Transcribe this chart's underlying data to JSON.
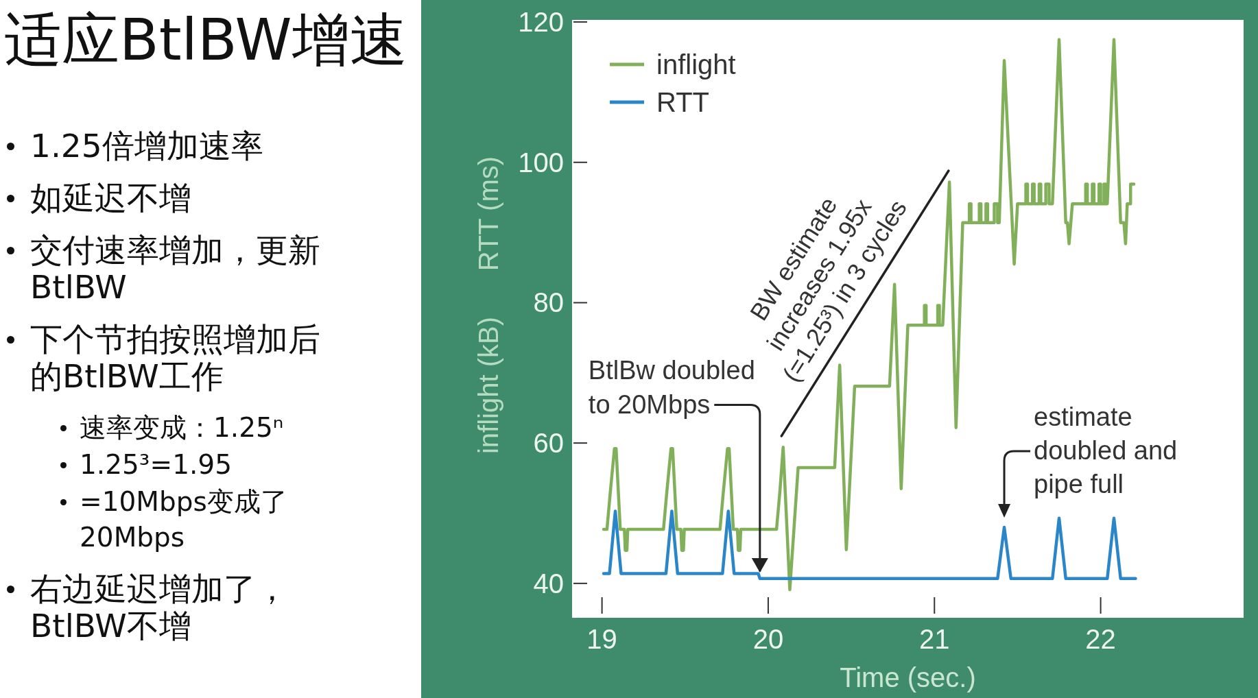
{
  "chart_data": {
    "type": "line",
    "title": "适应BtlBW增速",
    "xlabel": "Time (sec.)",
    "ylabel": "inflight (kB)      RTT (ms)",
    "xlim": [
      18.82,
      22.86
    ],
    "ylim": [
      35.1,
      120.3
    ],
    "xticks": [
      19,
      20,
      21,
      22
    ],
    "yticks": [
      40,
      60,
      80,
      100,
      120
    ],
    "legend": "top left",
    "series": [
      {
        "name": "inflight",
        "color": "#82b05a",
        "x": [
          19.01,
          19.03,
          19.05,
          19.075,
          19.085,
          19.11,
          19.135,
          19.14,
          19.15,
          19.155,
          19.37,
          19.39,
          19.415,
          19.425,
          19.45,
          19.475,
          19.48,
          19.49,
          19.495,
          19.71,
          19.73,
          19.755,
          19.765,
          19.79,
          19.815,
          19.82,
          19.83,
          19.835,
          20.05,
          20.07,
          20.09,
          20.13,
          20.18,
          20.4,
          20.43,
          20.47,
          20.52,
          20.73,
          20.76,
          20.8,
          20.84,
          20.94,
          20.94,
          20.95,
          20.95,
          21.02,
          21.02,
          21.03,
          21.03,
          21.05,
          21.09,
          21.13,
          21.17,
          21.21,
          21.21,
          21.22,
          21.22,
          21.27,
          21.27,
          21.28,
          21.28,
          21.31,
          21.31,
          21.32,
          21.32,
          21.36,
          21.36,
          21.38,
          21.38,
          21.39,
          21.42,
          21.48,
          21.5,
          21.55,
          21.55,
          21.56,
          21.56,
          21.59,
          21.59,
          21.6,
          21.6,
          21.63,
          21.63,
          21.64,
          21.64,
          21.67,
          21.67,
          21.69,
          21.69,
          21.71,
          21.75,
          21.79,
          21.8,
          21.81,
          21.83,
          21.91,
          21.91,
          21.92,
          21.92,
          21.95,
          21.95,
          21.96,
          21.96,
          21.99,
          21.99,
          22.0,
          22.0,
          22.02,
          22.02,
          22.03,
          22.03,
          22.04,
          22.08,
          22.12,
          22.14,
          22.15,
          22.16,
          22.18,
          22.18,
          22.2
        ],
        "values": [
          47.7,
          47.7,
          53,
          59.2,
          59.2,
          47.7,
          47.7,
          44.7,
          44.7,
          47.7,
          47.7,
          53,
          59.2,
          59.2,
          47.7,
          47.7,
          44.7,
          44.7,
          47.7,
          47.7,
          53,
          59.2,
          59.2,
          47.7,
          47.7,
          44.7,
          44.7,
          47.7,
          47.7,
          53,
          59.4,
          39.1,
          56.5,
          56.5,
          71.1,
          44.8,
          68.1,
          68.1,
          82.6,
          53.5,
          76.8,
          76.8,
          79.6,
          79.6,
          76.8,
          76.8,
          79.6,
          79.6,
          76.8,
          76.8,
          97.2,
          62.2,
          91.4,
          91.4,
          94.1,
          94.1,
          91.4,
          91.4,
          94.1,
          94.1,
          91.4,
          91.4,
          94.1,
          94.1,
          91.4,
          91.4,
          94.1,
          94.1,
          91.4,
          91.4,
          114.5,
          85.5,
          94.1,
          94.1,
          96.9,
          96.9,
          94.1,
          94.1,
          96.9,
          96.9,
          94.1,
          94.1,
          96.9,
          96.9,
          94.1,
          94.1,
          96.9,
          96.9,
          94.1,
          94.1,
          117.5,
          91.4,
          91.4,
          88.4,
          94.1,
          94.1,
          96.9,
          96.9,
          94.1,
          94.1,
          96.9,
          96.9,
          94.1,
          94.1,
          96.9,
          96.9,
          94.1,
          94.1,
          96.9,
          96.9,
          94.1,
          94.1,
          117.5,
          91.4,
          91.4,
          88.4,
          94.1,
          94.1,
          96.9,
          96.9
        ]
      },
      {
        "name": "RTT",
        "color": "#2a86c8",
        "x": [
          19.01,
          19.045,
          19.08,
          19.115,
          19.385,
          19.42,
          19.455,
          19.725,
          19.76,
          19.795,
          19.94,
          19.95,
          21.38,
          21.42,
          21.46,
          21.71,
          21.75,
          21.79,
          22.04,
          22.08,
          22.12,
          22.21
        ],
        "values": [
          41.4,
          41.4,
          50.3,
          41.4,
          41.4,
          50.3,
          41.4,
          41.4,
          50.3,
          41.4,
          41.4,
          40.7,
          40.7,
          48.0,
          40.7,
          40.7,
          49.3,
          40.7,
          40.7,
          49.3,
          40.7,
          40.7
        ]
      },
      {
        "color": "#222222",
        "x": [
          20.08,
          21.085
        ],
        "values": [
          61,
          98.8
        ]
      }
    ],
    "annotations": [
      "1.25倍增加速率",
      "如延迟不增",
      "交付速率增加，更新BtlBW",
      "下个节拍按照增加后的BtlBW工作",
      "速率变成：1.25ⁿ",
      "1.25³=1.95",
      "=10Mbps变成了20Mbps",
      "右边延迟增加了，BtlBW不增",
      {
        "text": "BtlBw doubled\nto 20Mbps",
        "x": 19.95,
        "y": 41.4
      },
      {
        "text": "BW estimate\nincreases 1.95x\n(=1.25³) in 3 cycles",
        "x": 20.58,
        "y": 79.9
      },
      {
        "text": "estimate\ndoubled and\npipe full",
        "x": 21.42,
        "y": 48.0
      }
    ]
  }
}
